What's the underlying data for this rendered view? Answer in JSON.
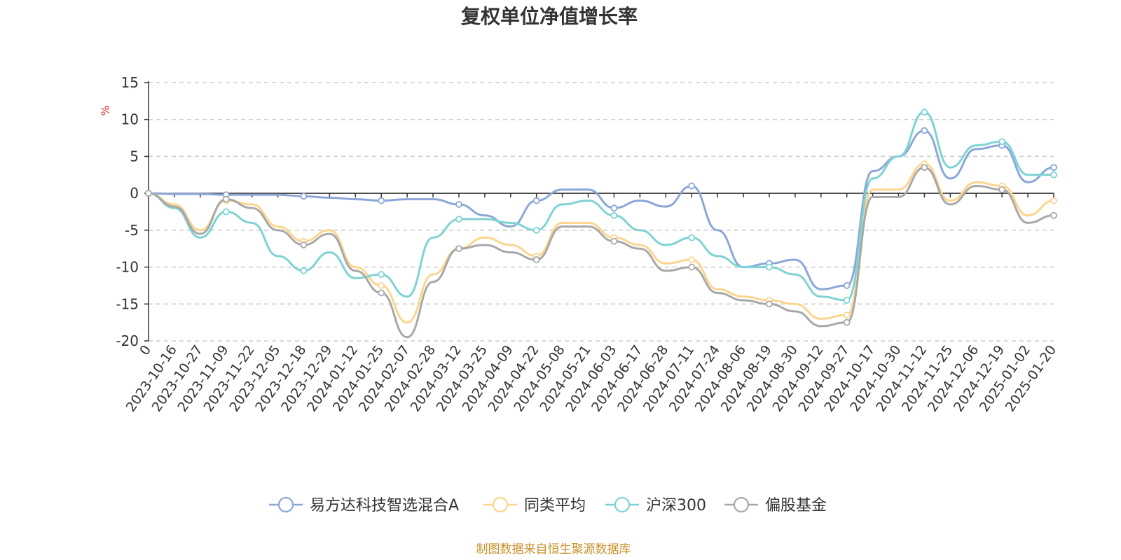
{
  "chart_data": {
    "type": "line",
    "title": "复权单位净值增长率",
    "ylabel": "%",
    "ylim": [
      -20,
      15
    ],
    "yticks": [
      15,
      10,
      5,
      0,
      -5,
      -10,
      -15,
      -20
    ],
    "grid": true,
    "legend_position": "bottom",
    "source": "制图数据来自恒生聚源数据库",
    "x_tick_labels": [
      "0",
      "2023-10-16",
      "2023-10-27",
      "2023-11-09",
      "2023-11-22",
      "2023-12-05",
      "2023-12-18",
      "2023-12-29",
      "2024-01-12",
      "2024-01-25",
      "2024-02-07",
      "2024-02-28",
      "2024-03-12",
      "2024-03-25",
      "2024-04-09",
      "2024-04-22",
      "2024-05-08",
      "2024-05-21",
      "2024-06-03",
      "2024-06-17",
      "2024-06-28",
      "2024-07-11",
      "2024-07-24",
      "2024-08-06",
      "2024-08-19",
      "2024-08-30",
      "2024-09-12",
      "2024-09-27",
      "2024-10-17",
      "2024-10-30",
      "2024-11-12",
      "2024-11-25",
      "2024-12-06",
      "2024-12-19",
      "2025-01-02",
      "2025-01-20"
    ],
    "series": [
      {
        "name": "易方达科技智选混合A",
        "color": "#8ba7d8",
        "values": [
          0,
          -0.1,
          -0.1,
          -0.2,
          -0.2,
          -0.2,
          -0.4,
          -0.6,
          -0.8,
          -1.0,
          -0.8,
          -0.8,
          -1.5,
          -3.0,
          -4.5,
          -1.0,
          0.5,
          0.5,
          -2.0,
          -1.0,
          -1.8,
          1.0,
          -5.0,
          -10.0,
          -9.5,
          -9.0,
          -13.0,
          -12.5,
          3.0,
          5.0,
          8.5,
          2.0,
          6.0,
          6.5,
          1.5,
          3.5
        ]
      },
      {
        "name": "同类平均",
        "color": "#fcd58e",
        "values": [
          0,
          -1.5,
          -5.0,
          -1.0,
          -1.5,
          -4.5,
          -6.5,
          -5.0,
          -10.0,
          -12.5,
          -17.5,
          -11.0,
          -7.5,
          -6.0,
          -7.0,
          -8.5,
          -4.0,
          -4.0,
          -6.0,
          -7.0,
          -9.5,
          -9.0,
          -13.0,
          -14.0,
          -14.5,
          -15.0,
          -17.0,
          -16.5,
          0.5,
          0.5,
          4.0,
          -1.0,
          1.5,
          1.0,
          -3.0,
          -1.0
        ]
      },
      {
        "name": "沪深300",
        "color": "#7fd3d3",
        "values": [
          0,
          -2.0,
          -6.0,
          -2.5,
          -4.0,
          -8.5,
          -10.5,
          -8.0,
          -11.5,
          -11.0,
          -14.0,
          -6.0,
          -3.5,
          -3.5,
          -4.0,
          -5.0,
          -1.5,
          -1.0,
          -3.0,
          -5.0,
          -7.0,
          -6.0,
          -8.5,
          -10.0,
          -10.0,
          -11.0,
          -14.0,
          -14.5,
          2.0,
          5.0,
          11.0,
          3.5,
          6.5,
          7.0,
          2.5,
          2.5
        ]
      },
      {
        "name": "偏股基金",
        "color": "#a8a8a8",
        "values": [
          0,
          -1.8,
          -5.5,
          -0.8,
          -2.0,
          -5.0,
          -7.0,
          -5.5,
          -10.5,
          -13.5,
          -19.5,
          -12.0,
          -7.5,
          -7.0,
          -8.0,
          -9.0,
          -4.5,
          -4.5,
          -6.5,
          -7.5,
          -10.5,
          -10.0,
          -13.5,
          -14.5,
          -15.0,
          -16.0,
          -18.0,
          -17.5,
          -0.5,
          -0.5,
          3.5,
          -1.5,
          1.0,
          0.5,
          -4.0,
          -3.0
        ]
      }
    ]
  }
}
